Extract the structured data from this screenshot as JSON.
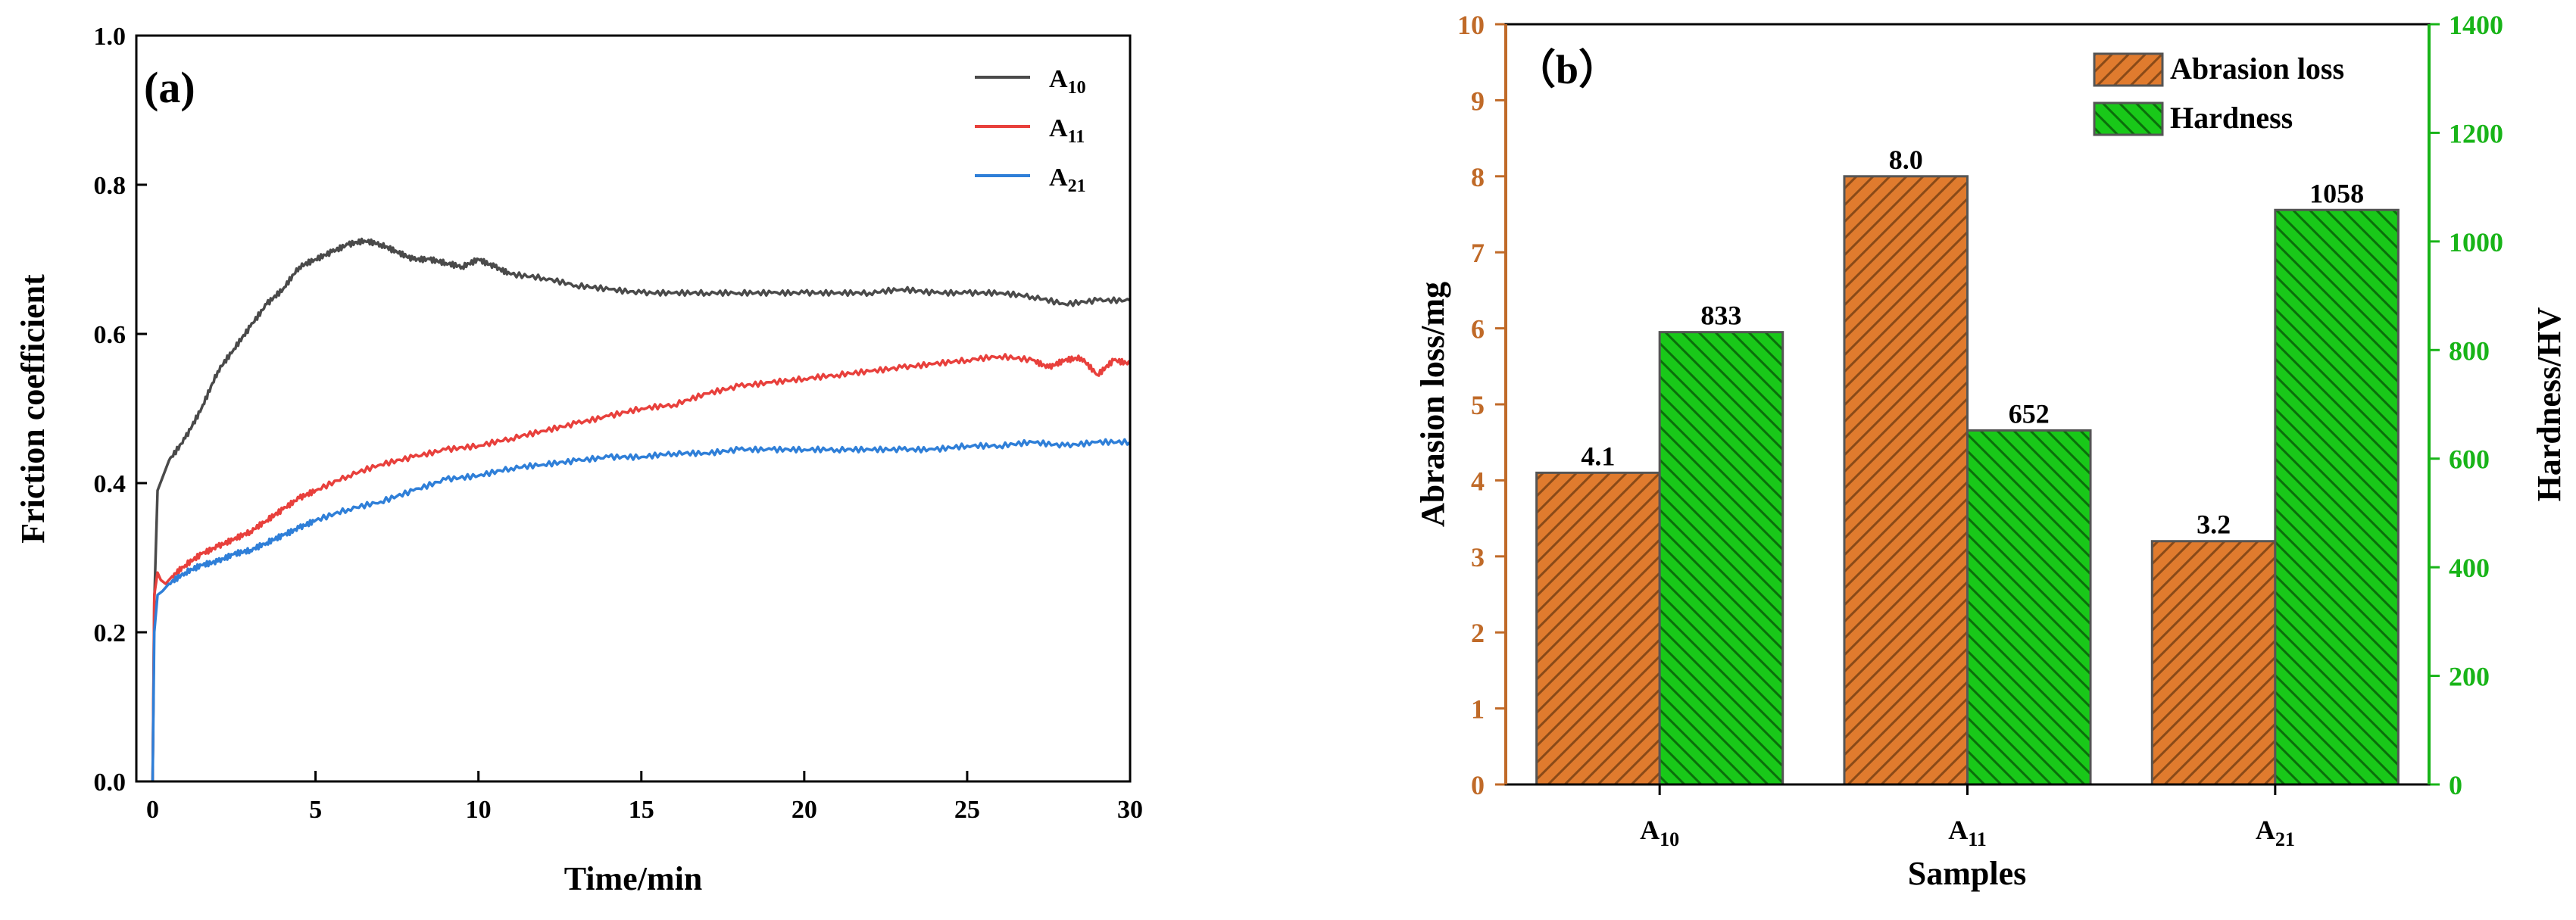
{
  "chart_data": [
    {
      "panel_label": "(a)",
      "type": "line",
      "xlabel": "Time/min",
      "ylabel": "Friction coefficient",
      "xlim": [
        -0.5,
        30
      ],
      "ylim": [
        0,
        1.0
      ],
      "xticks": [
        0,
        5,
        10,
        15,
        20,
        25,
        30
      ],
      "yticks": [
        0.0,
        0.2,
        0.4,
        0.6,
        0.8,
        1.0
      ],
      "xtick_labels": [
        "0",
        "5",
        "10",
        "15",
        "20",
        "25",
        "30"
      ],
      "ytick_labels": [
        "0.0",
        "0.2",
        "0.4",
        "0.6",
        "0.8",
        "1.0"
      ],
      "legend_position": "top-right",
      "series": [
        {
          "name": "A",
          "subscript": "10",
          "color": "#4a4a4a",
          "x": [
            0,
            0.05,
            0.15,
            0.5,
            1,
            1.5,
            2,
            2.5,
            3,
            3.5,
            4,
            4.5,
            5,
            5.5,
            6,
            6.5,
            7,
            7.5,
            8,
            8.5,
            9,
            9.5,
            10,
            10.5,
            11,
            12,
            13,
            14,
            15,
            16,
            17,
            18,
            19,
            20,
            21,
            22,
            23,
            24,
            25,
            26,
            27,
            28,
            29,
            30
          ],
          "y": [
            0,
            0.24,
            0.39,
            0.43,
            0.46,
            0.5,
            0.55,
            0.58,
            0.61,
            0.64,
            0.66,
            0.69,
            0.7,
            0.71,
            0.72,
            0.725,
            0.72,
            0.71,
            0.7,
            0.7,
            0.695,
            0.69,
            0.7,
            0.69,
            0.68,
            0.675,
            0.665,
            0.66,
            0.655,
            0.655,
            0.655,
            0.655,
            0.655,
            0.655,
            0.655,
            0.655,
            0.66,
            0.655,
            0.655,
            0.655,
            0.65,
            0.64,
            0.645,
            0.645
          ]
        },
        {
          "name": "A",
          "subscript": "11",
          "color": "#e8403c",
          "x": [
            0,
            0.05,
            0.15,
            0.25,
            0.4,
            0.6,
            1,
            1.5,
            2,
            2.5,
            3,
            3.5,
            4,
            4.5,
            5,
            6,
            7,
            8,
            9,
            10,
            11,
            12,
            13,
            14,
            15,
            16,
            17,
            18,
            19,
            20,
            21,
            22,
            23,
            24,
            25,
            26,
            27,
            27.5,
            28,
            28.5,
            29,
            29.5,
            30
          ],
          "y": [
            0,
            0.25,
            0.28,
            0.27,
            0.265,
            0.275,
            0.29,
            0.305,
            0.315,
            0.325,
            0.335,
            0.35,
            0.365,
            0.38,
            0.39,
            0.41,
            0.425,
            0.435,
            0.445,
            0.45,
            0.46,
            0.47,
            0.48,
            0.49,
            0.5,
            0.505,
            0.52,
            0.53,
            0.535,
            0.54,
            0.545,
            0.55,
            0.555,
            0.56,
            0.565,
            0.57,
            0.565,
            0.555,
            0.565,
            0.568,
            0.545,
            0.565,
            0.56
          ]
        },
        {
          "name": "A",
          "subscript": "21",
          "color": "#2f7fd8",
          "x": [
            0,
            0.05,
            0.15,
            0.3,
            0.5,
            1,
            1.5,
            2,
            2.5,
            3,
            3.5,
            4,
            4.5,
            5,
            6,
            7,
            8,
            9,
            10,
            11,
            12,
            13,
            14,
            15,
            16,
            17,
            18,
            19,
            20,
            21,
            22,
            23,
            24,
            25,
            26,
            27,
            28,
            29,
            30
          ],
          "y": [
            0,
            0.2,
            0.25,
            0.255,
            0.265,
            0.28,
            0.29,
            0.295,
            0.305,
            0.31,
            0.32,
            0.33,
            0.34,
            0.35,
            0.365,
            0.375,
            0.39,
            0.405,
            0.41,
            0.42,
            0.425,
            0.43,
            0.435,
            0.435,
            0.44,
            0.44,
            0.445,
            0.445,
            0.445,
            0.445,
            0.445,
            0.445,
            0.445,
            0.45,
            0.45,
            0.455,
            0.45,
            0.455,
            0.455
          ]
        }
      ]
    },
    {
      "panel_label": "（b）",
      "type": "bar",
      "xlabel": "Samples",
      "ylabel_left": "Abrasion loss/mg",
      "ylabel_right": "Hardness/HV",
      "ylim_left": [
        0,
        10
      ],
      "ylim_right": [
        0,
        1400
      ],
      "yticks_left": [
        0,
        1,
        2,
        3,
        4,
        5,
        6,
        7,
        8,
        9,
        10
      ],
      "yticks_right": [
        0,
        200,
        400,
        600,
        800,
        1000,
        1200,
        1400
      ],
      "categories": [
        {
          "base": "A",
          "sub": "10"
        },
        {
          "base": "A",
          "sub": "11"
        },
        {
          "base": "A",
          "sub": "21"
        }
      ],
      "legend_position": "top-right",
      "series": [
        {
          "name": "Abrasion loss",
          "axis": "left",
          "color": "#e07b2e",
          "hatch": "#8a4a18",
          "values": [
            4.1,
            8.0,
            3.2
          ],
          "labels": [
            "4.1",
            "8.0",
            "3.2"
          ]
        },
        {
          "name": "Hardness",
          "axis": "right",
          "color": "#19c819",
          "hatch": "#0b6e0b",
          "values": [
            833,
            652,
            1058
          ],
          "labels": [
            "833",
            "652",
            "1058"
          ]
        }
      ],
      "colors": {
        "left_axis": "#c06a28",
        "right_axis": "#18b418"
      }
    }
  ]
}
